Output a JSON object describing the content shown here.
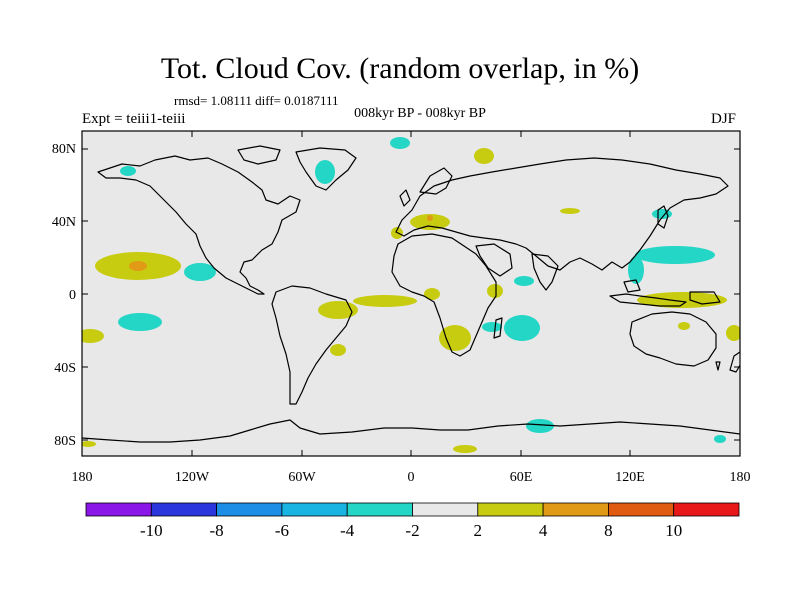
{
  "header": {
    "title": "Tot. Cloud Cov. (random overlap, in %)",
    "stats": "rmsd= 1.08111 diff= 0.0187111",
    "period": "008kyr BP - 008kyr BP",
    "experiment": "Expt = teiii1-teiii",
    "season": "DJF"
  },
  "axes": {
    "lat_labels": [
      "80N",
      "40N",
      "0",
      "40S",
      "80S"
    ],
    "lon_labels": [
      "180",
      "120W",
      "60W",
      "0",
      "60E",
      "120E",
      "180"
    ]
  },
  "colorbar": {
    "colors": [
      "#8a17e8",
      "#2b36dd",
      "#1c8ee6",
      "#1ab4e3",
      "#24d6c6",
      "#e8e8e8",
      "#c8cc10",
      "#e09a16",
      "#e05a10",
      "#e81818"
    ],
    "labels": [
      "-10",
      "-8",
      "-6",
      "-4",
      "-2",
      "2",
      "4",
      "8",
      "10"
    ]
  },
  "colors": {
    "background_field": "#e8e8e8",
    "negative_anomaly": "#24d6c6",
    "positive_anomaly": "#c8cc10",
    "strong_positive": "#e09a16"
  }
}
